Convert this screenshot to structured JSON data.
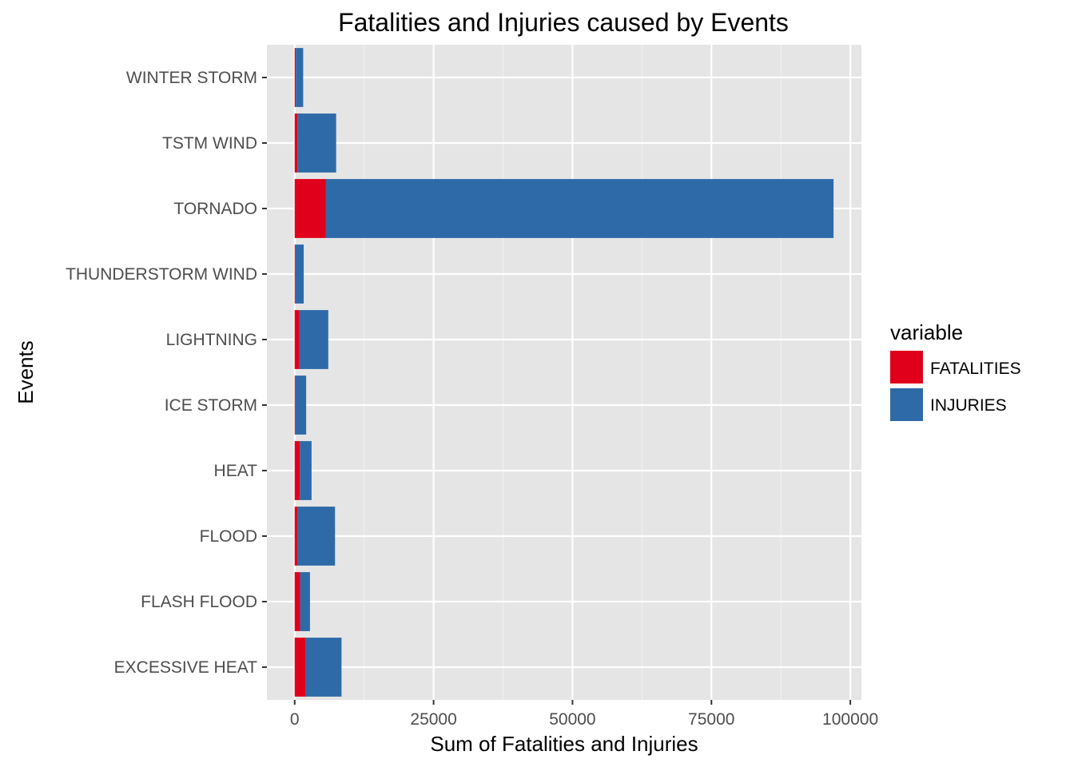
{
  "chart_data": {
    "type": "bar",
    "orientation": "horizontal",
    "stacked": true,
    "title": "Fatalities and Injuries caused by Events",
    "xlabel": "Sum of Fatalities and Injuries",
    "ylabel": "Events",
    "xlim": [
      -5000,
      102000
    ],
    "x_ticks": [
      0,
      25000,
      50000,
      75000,
      100000
    ],
    "x_tick_labels": [
      "0",
      "25000",
      "50000",
      "75000",
      "100000"
    ],
    "grid": true,
    "legend": {
      "title": "variable",
      "placement": "right",
      "entries": [
        "FATALITIES",
        "INJURIES"
      ]
    },
    "categories": [
      "EXCESSIVE HEAT",
      "FLASH FLOOD",
      "FLOOD",
      "HEAT",
      "ICE STORM",
      "LIGHTNING",
      "THUNDERSTORM WIND",
      "TORNADO",
      "TSTM WIND",
      "WINTER STORM"
    ],
    "series": [
      {
        "name": "FATALITIES",
        "color": "#e0001b",
        "values": [
          1903,
          978,
          470,
          937,
          89,
          816,
          133,
          5633,
          504,
          206
        ]
      },
      {
        "name": "INJURIES",
        "color": "#2e6aa8",
        "values": [
          6525,
          1777,
          6789,
          2100,
          1975,
          5230,
          1488,
          91346,
          6957,
          1321
        ]
      }
    ]
  }
}
